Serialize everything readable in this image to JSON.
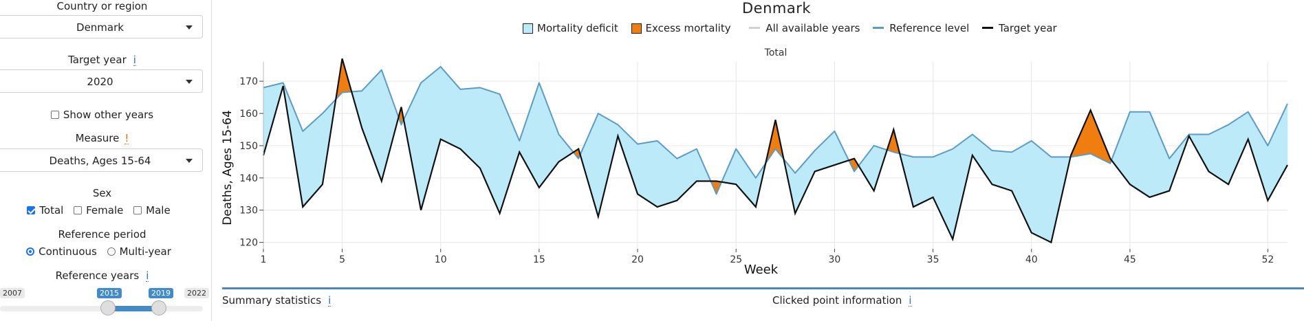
{
  "sidebar": {
    "country_label": "Country or region",
    "country_value": "Denmark",
    "target_year_label": "Target year",
    "target_year_value": "2020",
    "show_other_years_label": "Show other years",
    "measure_label": "Measure",
    "measure_value": "Deaths, Ages 15-64",
    "sex_label": "Sex",
    "sex_options": [
      "Total",
      "Female",
      "Male"
    ],
    "sex_checked": [
      true,
      false,
      false
    ],
    "reference_period_label": "Reference period",
    "reference_period_options": [
      "Continuous",
      "Multi-year"
    ],
    "reference_period_selected": "Continuous",
    "reference_years_label": "Reference years",
    "reference_years_min": "2007",
    "reference_years_from": "2015",
    "reference_years_to": "2019",
    "reference_years_max": "2022",
    "info_glyph": "i",
    "warn_glyph": "!"
  },
  "legend": {
    "deficit": "Mortality deficit",
    "excess": "Excess mortality",
    "all_years": "All available years",
    "reference": "Reference level",
    "target": "Target year"
  },
  "colors": {
    "deficit_fill": "#bdeaf9",
    "excess_fill": "#ef7d0f",
    "reference_line": "#5b9bc6",
    "target_line": "#111111",
    "all_years_line": "#d0d0d0",
    "accent": "#4a86c0"
  },
  "bottom": {
    "summary_label": "Summary statistics",
    "clicked_label": "Clicked point information"
  },
  "chart_data": {
    "type": "area",
    "title": "Denmark",
    "facet": "Total",
    "xlabel": "Week",
    "ylabel": "Deaths, Ages 15-64",
    "xlim": [
      1,
      52.5
    ],
    "ylim": [
      118,
      176
    ],
    "xticks": [
      1,
      5,
      10,
      15,
      20,
      25,
      30,
      35,
      40,
      45,
      52
    ],
    "yticks": [
      120,
      130,
      140,
      150,
      160,
      170
    ],
    "grid": true,
    "legend_position": "top",
    "x": [
      1,
      2,
      3,
      4,
      5,
      6,
      7,
      8,
      9,
      10,
      11,
      12,
      13,
      14,
      15,
      16,
      17,
      18,
      19,
      20,
      21,
      22,
      23,
      24,
      25,
      26,
      27,
      28,
      29,
      30,
      31,
      32,
      33,
      34,
      35,
      36,
      37,
      38,
      39,
      40,
      41,
      42,
      43,
      44,
      45,
      46,
      47,
      48,
      49,
      50,
      51,
      52,
      53
    ],
    "series": [
      {
        "name": "Reference level",
        "values": [
          168,
          169.5,
          154.5,
          160,
          166.5,
          167,
          173.5,
          156.5,
          169.5,
          174.5,
          167.5,
          168,
          166,
          151.5,
          169.5,
          153.5,
          146,
          160,
          156.5,
          150.5,
          151.5,
          146,
          149,
          135,
          149,
          140,
          149,
          141.5,
          148.5,
          154.5,
          142,
          150,
          148,
          146.5,
          146.5,
          149,
          153.5,
          148.5,
          148,
          151.5,
          146.5,
          146.5,
          147.5,
          144.5,
          160.5,
          160.5,
          146,
          153.5,
          153.5,
          156.5,
          160.5,
          150,
          163
        ]
      },
      {
        "name": "Target year",
        "values": [
          147,
          168.5,
          131,
          138,
          177,
          155.5,
          139,
          162,
          130,
          152,
          149,
          143,
          129,
          148,
          137,
          145,
          149,
          128,
          153,
          135,
          131,
          133,
          139,
          139,
          138,
          131,
          158,
          129,
          142,
          144,
          146,
          136,
          155,
          131,
          134,
          121,
          147,
          138,
          136,
          123,
          120,
          147,
          161,
          146,
          138,
          134,
          136,
          153,
          142,
          138,
          152,
          133,
          144
        ]
      }
    ]
  }
}
